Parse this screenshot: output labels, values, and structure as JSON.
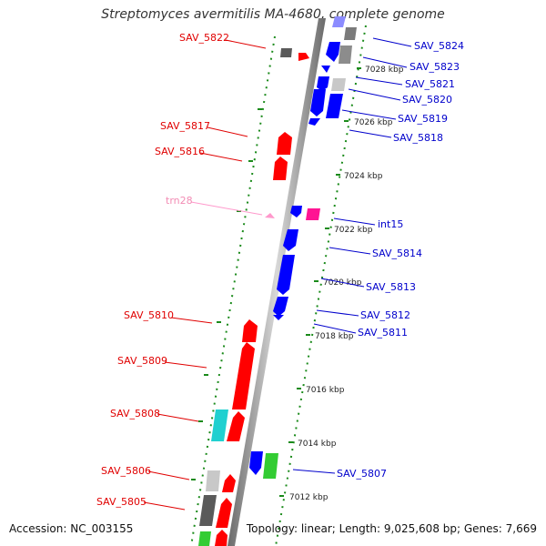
{
  "title": "Streptomyces avermitilis MA-4680, complete genome",
  "footer": {
    "accession": "Accession: NC_003155",
    "summary": "Topology: linear; Length: 9,025,608 bp; Genes: 7,669"
  },
  "colors": {
    "forward_gene": "#ff0000",
    "reverse_gene": "#0000ff",
    "gray_gene": "#a0a0a0",
    "dark_gray_gene": "#5a5a5a",
    "cyan_gene": "#20d0d0",
    "green_gene": "#33cc33",
    "magenta_gene": "#ff1493",
    "trna": "#ff99cc",
    "ticks": "#1a8a1a",
    "left_labels": "#e00000",
    "right_labels": "#0000cc"
  },
  "kbp_ticks": [
    "7028 kbp",
    "7026 kbp",
    "7024 kbp",
    "7022 kbp",
    "7020 kbp",
    "7018 kbp",
    "7016 kbp",
    "7014 kbp",
    "7012 kbp"
  ],
  "left_labels": [
    "SAV_5822",
    "SAV_5817",
    "SAV_5816",
    "trn28",
    "SAV_5810",
    "SAV_5809",
    "SAV_5808",
    "SAV_5806",
    "SAV_5805"
  ],
  "right_labels": [
    "SAV_5824",
    "SAV_5823",
    "SAV_5821",
    "SAV_5820",
    "SAV_5819",
    "SAV_5818",
    "int15",
    "SAV_5814",
    "SAV_5813",
    "SAV_5812",
    "SAV_5811",
    "SAV_5807"
  ]
}
